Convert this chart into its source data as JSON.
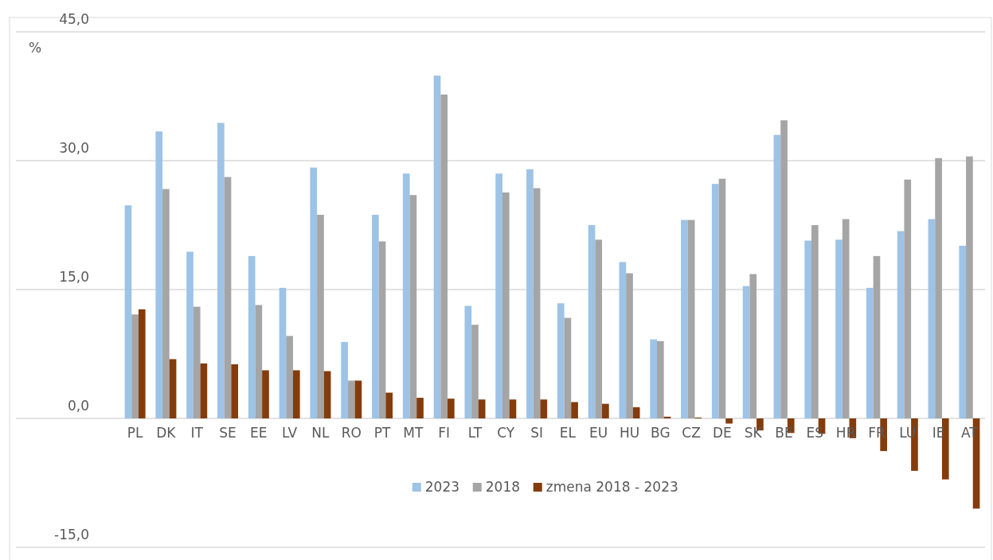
{
  "chart_data": {
    "type": "bar",
    "ylabel": "%",
    "categories": [
      "PL",
      "DK",
      "IT",
      "SE",
      "EE",
      "LV",
      "NL",
      "RO",
      "PT",
      "MT",
      "FI",
      "LT",
      "CY",
      "SI",
      "EL",
      "EU",
      "HU",
      "BG",
      "CZ",
      "DE",
      "SK",
      "BE",
      "ES",
      "HR",
      "FR",
      "LU",
      "IE",
      "AT"
    ],
    "series": [
      {
        "name": "2023",
        "color": "#9dc3e6",
        "values": [
          24.8,
          33.4,
          19.4,
          34.4,
          18.9,
          15.2,
          29.2,
          8.9,
          23.7,
          28.5,
          39.9,
          13.1,
          28.5,
          29.0,
          13.4,
          22.5,
          18.2,
          9.2,
          23.1,
          27.3,
          15.4,
          33.0,
          20.7,
          20.8,
          15.2,
          21.8,
          23.2,
          20.1
        ]
      },
      {
        "name": "2018",
        "color": "#a5a5a5",
        "values": [
          12.1,
          26.7,
          13.0,
          28.1,
          13.2,
          9.6,
          23.7,
          4.4,
          20.6,
          26.0,
          37.7,
          10.9,
          26.3,
          26.8,
          11.7,
          20.8,
          16.9,
          9.0,
          23.1,
          27.9,
          16.8,
          34.7,
          22.5,
          23.2,
          18.9,
          27.8,
          30.3,
          30.5
        ]
      },
      {
        "name": "zmena 2018 - 2023",
        "color": "#843c0c",
        "values": [
          12.7,
          6.9,
          6.4,
          6.3,
          5.6,
          5.6,
          5.5,
          4.4,
          3.0,
          2.4,
          2.3,
          2.2,
          2.2,
          2.2,
          1.9,
          1.7,
          1.3,
          0.2,
          0.1,
          -0.6,
          -1.4,
          -1.7,
          -1.8,
          -2.3,
          -3.8,
          -6.1,
          -7.1,
          -10.5
        ]
      }
    ],
    "ylim": [
      -15,
      45
    ],
    "yticks": [
      {
        "value": -15,
        "label": "-15,0"
      },
      {
        "value": 0,
        "label": "0,0"
      },
      {
        "value": 15,
        "label": "15,0"
      },
      {
        "value": 30,
        "label": "30,0"
      },
      {
        "value": 45,
        "label": "45,0"
      }
    ],
    "grid": "y",
    "legend": "bottom"
  }
}
